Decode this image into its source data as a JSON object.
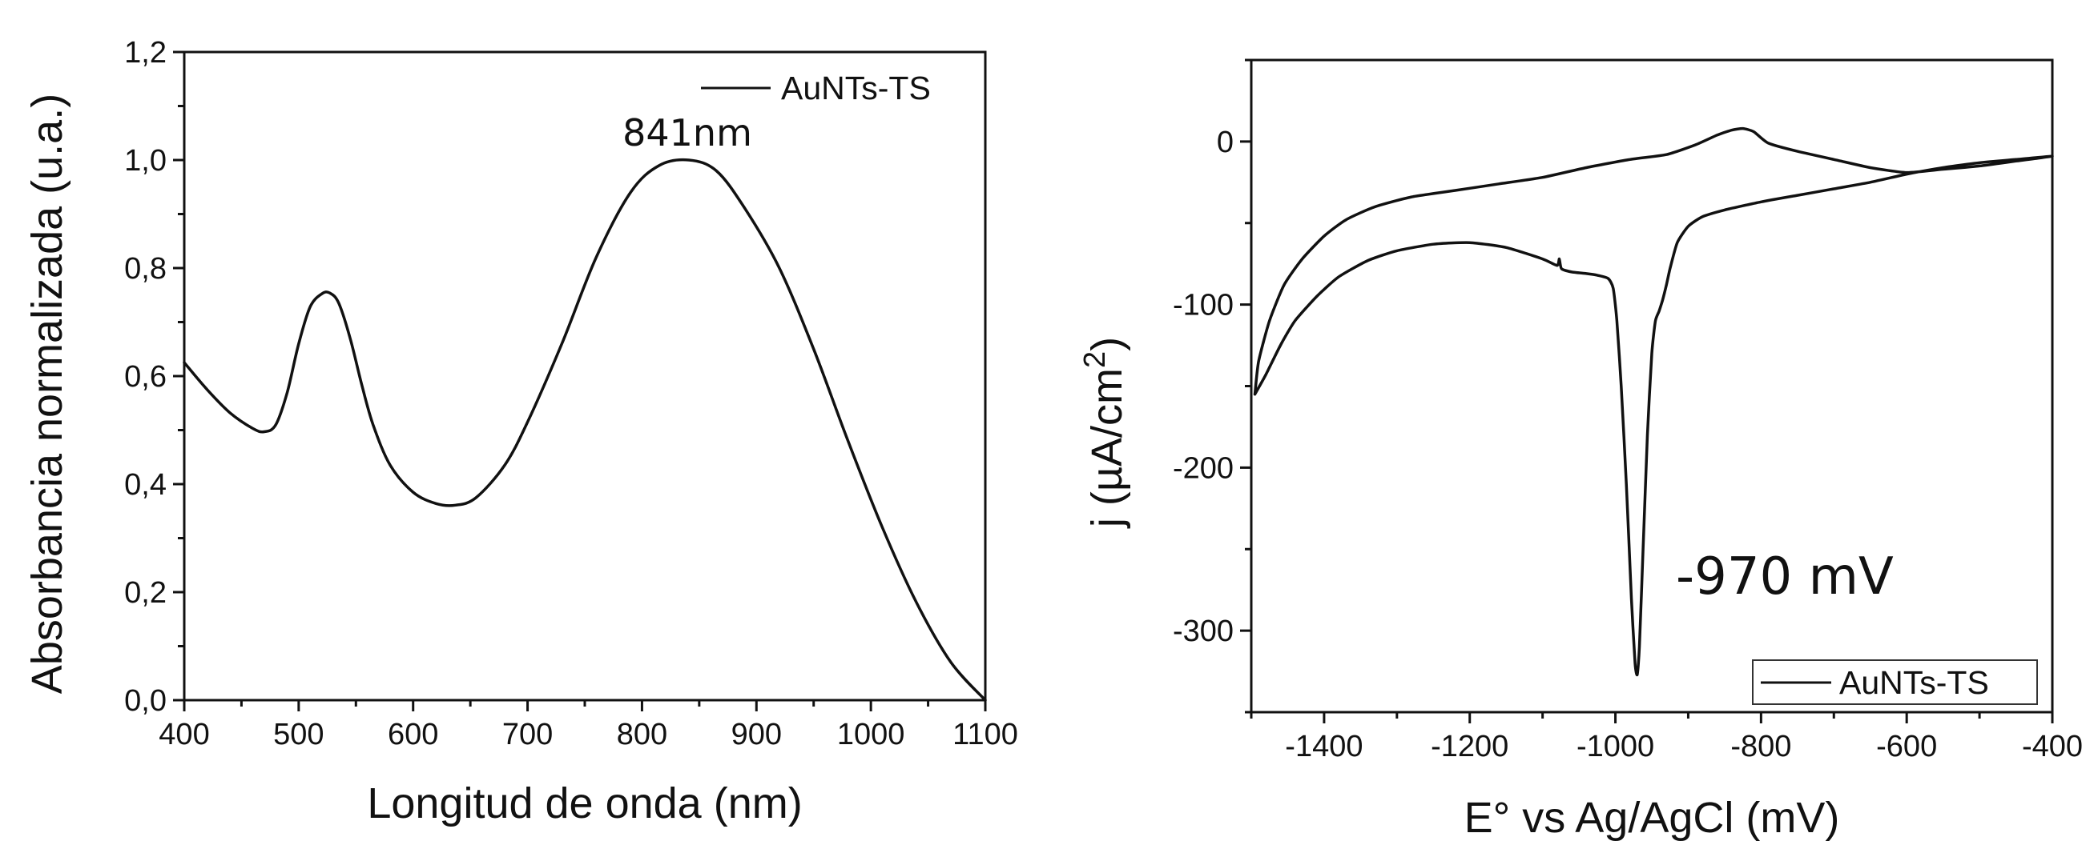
{
  "chart_data": [
    {
      "type": "line",
      "title": "",
      "xlabel": "Longitud de onda (nm)",
      "ylabel": "Absorbancia normalizada (u.a.)",
      "xlim": [
        400,
        1100
      ],
      "ylim": [
        0.0,
        1.2
      ],
      "x_ticks": [
        400,
        500,
        600,
        700,
        800,
        900,
        1000,
        1100
      ],
      "x_tick_labels": [
        "400",
        "500",
        "600",
        "700",
        "800",
        "900",
        "1000",
        "1100"
      ],
      "y_ticks": [
        0.0,
        0.2,
        0.4,
        0.6,
        0.8,
        1.0,
        1.2
      ],
      "y_tick_labels": [
        "0,0",
        "0,2",
        "0,4",
        "0,6",
        "0,8",
        "1,0",
        "1,2"
      ],
      "grid": false,
      "legend": {
        "placement": "top-right",
        "boxed": false,
        "entries": [
          "AuNTs-TS"
        ]
      },
      "annotations": [
        {
          "text": "841nm",
          "x": 841,
          "y": 1.0
        }
      ],
      "series": [
        {
          "name": "AuNTs-TS",
          "x": [
            400,
            420,
            440,
            460,
            470,
            480,
            490,
            500,
            510,
            520,
            527,
            535,
            545,
            555,
            565,
            580,
            600,
            620,
            637,
            655,
            680,
            700,
            730,
            760,
            790,
            815,
            841,
            865,
            890,
            920,
            950,
            980,
            1010,
            1040,
            1070,
            1100
          ],
          "y": [
            0.625,
            0.575,
            0.532,
            0.503,
            0.497,
            0.51,
            0.57,
            0.66,
            0.728,
            0.752,
            0.754,
            0.735,
            0.67,
            0.585,
            0.51,
            0.435,
            0.385,
            0.364,
            0.361,
            0.375,
            0.435,
            0.515,
            0.66,
            0.82,
            0.94,
            0.99,
            1.0,
            0.98,
            0.91,
            0.8,
            0.65,
            0.48,
            0.32,
            0.18,
            0.07,
            0.0
          ]
        }
      ]
    },
    {
      "type": "line",
      "title": "",
      "xlabel": "E° vs Ag/AgCl (mV)",
      "ylabel_main": "j (µA/cm",
      "ylabel_sup": "2",
      "ylabel_close": ")",
      "xlim": [
        -1500,
        -400
      ],
      "ylim": [
        -350,
        50
      ],
      "x_ticks": [
        -1400,
        -1200,
        -1000,
        -800,
        -600,
        -400
      ],
      "x_tick_labels": [
        "-1400",
        "-1200",
        "-1000",
        "-800",
        "-600",
        "-400"
      ],
      "y_ticks": [
        0,
        -100,
        -200,
        -300
      ],
      "y_tick_labels": [
        "0",
        "-100",
        "-200",
        "-300"
      ],
      "grid": false,
      "legend": {
        "placement": "bottom-right",
        "boxed": true,
        "entries": [
          "AuNTs-TS"
        ]
      },
      "annotations": [
        {
          "text": "-970 mV",
          "x": -970,
          "y": -327
        }
      ],
      "series": [
        {
          "name": "AuNTs-TS",
          "x": [
            -1495,
            -1480,
            -1460,
            -1440,
            -1410,
            -1380,
            -1340,
            -1300,
            -1250,
            -1200,
            -1150,
            -1100,
            -1080,
            -1077,
            -1074,
            -1060,
            -1040,
            -1025,
            -1010,
            -1003,
            -998,
            -992,
            -985,
            -978,
            -973,
            -970,
            -967,
            -962,
            -956,
            -950,
            -945,
            -940,
            -935,
            -930,
            -925,
            -915,
            -900,
            -880,
            -850,
            -800,
            -750,
            -700,
            -650,
            -600,
            -550,
            -500,
            -450,
            -400,
            -450,
            -500,
            -550,
            -600,
            -650,
            -700,
            -750,
            -790,
            -810,
            -825,
            -840,
            -860,
            -890,
            -930,
            -980,
            -1040,
            -1100,
            -1160,
            -1220,
            -1280,
            -1330,
            -1370,
            -1400,
            -1430,
            -1455,
            -1475,
            -1490,
            -1495
          ],
          "y": [
            -155,
            -143,
            -125,
            -110,
            -95,
            -83,
            -73,
            -67,
            -63,
            -62,
            -65,
            -72,
            -76,
            -72,
            -78,
            -80,
            -81,
            -82,
            -84,
            -90,
            -110,
            -150,
            -210,
            -280,
            -320,
            -327,
            -310,
            -250,
            -180,
            -130,
            -110,
            -104,
            -97,
            -88,
            -78,
            -62,
            -52,
            -46,
            -42,
            -37,
            -33,
            -29,
            -25,
            -20,
            -16,
            -13,
            -11,
            -9,
            -12,
            -15,
            -17,
            -19,
            -16,
            -11,
            -6,
            -1,
            6,
            8,
            7,
            4,
            -2,
            -8,
            -11,
            -16,
            -22,
            -26,
            -30,
            -34,
            -40,
            -48,
            -58,
            -72,
            -88,
            -110,
            -135,
            -155
          ]
        }
      ]
    }
  ]
}
